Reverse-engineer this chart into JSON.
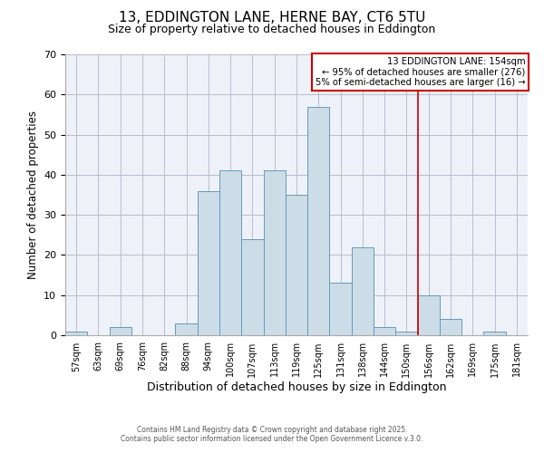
{
  "title": "13, EDDINGTON LANE, HERNE BAY, CT6 5TU",
  "subtitle": "Size of property relative to detached houses in Eddington",
  "xlabel": "Distribution of detached houses by size in Eddington",
  "ylabel": "Number of detached properties",
  "bin_labels": [
    "57sqm",
    "63sqm",
    "69sqm",
    "76sqm",
    "82sqm",
    "88sqm",
    "94sqm",
    "100sqm",
    "107sqm",
    "113sqm",
    "119sqm",
    "125sqm",
    "131sqm",
    "138sqm",
    "144sqm",
    "150sqm",
    "156sqm",
    "162sqm",
    "169sqm",
    "175sqm",
    "181sqm"
  ],
  "bar_heights": [
    1,
    0,
    2,
    0,
    0,
    3,
    36,
    41,
    24,
    41,
    35,
    57,
    13,
    22,
    2,
    1,
    10,
    4,
    0,
    1,
    0
  ],
  "bar_color": "#ccdde8",
  "bar_edge_color": "#6699bb",
  "ylim": [
    0,
    70
  ],
  "yticks": [
    0,
    10,
    20,
    30,
    40,
    50,
    60,
    70
  ],
  "vline_x_index": 15.5,
  "vline_color": "#cc0000",
  "annotation_title": "13 EDDINGTON LANE: 154sqm",
  "annotation_line1": "← 95% of detached houses are smaller (276)",
  "annotation_line2": "5% of semi-detached houses are larger (16) →",
  "annotation_box_color": "#cc0000",
  "footer1": "Contains HM Land Registry data © Crown copyright and database right 2025.",
  "footer2": "Contains public sector information licensed under the Open Government Licence v.3.0.",
  "background_color": "#ffffff",
  "grid_color": "#bbbbcc",
  "plot_bg_color": "#eef2f8"
}
